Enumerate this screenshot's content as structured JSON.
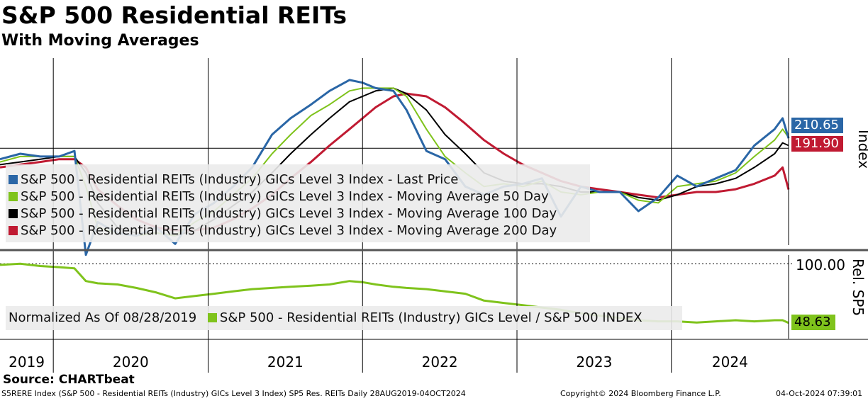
{
  "title": "S&P 500 Residential REITs",
  "subtitle": "With Moving Averages",
  "source": "Source: CHARTbeat",
  "footer": {
    "left": "S5RERE Index (S&P 500 - Residential REITs (Industry) GICs Level 3 Index) SP5 Res. REITs  Daily 28AUG2019-04OCT2024",
    "middle": "Copyright© 2024 Bloomberg Finance L.P.",
    "right": "04-Oct-2024 07:39:01"
  },
  "colors": {
    "price": "#2a66a6",
    "ma50": "#7fc31c",
    "ma100": "#000000",
    "ma200": "#c01a32",
    "relative": "#7fc31c"
  },
  "chart_data": [
    {
      "type": "line",
      "panel": "upper",
      "ylabel": "Index",
      "legend": [
        "S&P 500 - Residential REITs (Industry) GICs Level 3 Index - Last Price",
        "S&P 500 - Residential REITs (Industry) GICs Level 3 Index - Moving Average 50 Day",
        "S&P 500 - Residential REITs (Industry) GICs Level 3 Index - Moving Average 100 Day",
        "S&P 500 - Residential REITs (Industry) GICs Level 3 Index - Moving Average 200 Day"
      ],
      "x_tick_labels": [
        "2019",
        "2020",
        "2021",
        "2022",
        "2023",
        "2024"
      ],
      "last_values": {
        "price": "210.65",
        "ma200": "191.90"
      },
      "x": [
        "2019-08-28",
        "2019-10-15",
        "2019-12-01",
        "2020-01-15",
        "2020-02-20",
        "2020-03-18",
        "2020-04-15",
        "2020-06-01",
        "2020-07-15",
        "2020-09-01",
        "2020-10-15",
        "2020-12-01",
        "2021-01-15",
        "2021-03-01",
        "2021-04-15",
        "2021-06-01",
        "2021-07-15",
        "2021-09-01",
        "2021-10-15",
        "2021-12-01",
        "2022-01-01",
        "2022-02-01",
        "2022-03-15",
        "2022-04-15",
        "2022-06-01",
        "2022-07-15",
        "2022-09-01",
        "2022-10-15",
        "2022-12-01",
        "2023-01-15",
        "2023-03-01",
        "2023-04-15",
        "2023-06-01",
        "2023-07-15",
        "2023-09-01",
        "2023-10-15",
        "2023-12-01",
        "2024-01-15",
        "2024-03-01",
        "2024-04-15",
        "2024-06-01",
        "2024-07-15",
        "2024-09-01",
        "2024-09-20",
        "2024-10-04"
      ],
      "series": [
        {
          "key": "price",
          "values": [
            203,
            205,
            204,
            204,
            206,
            168,
            180,
            176,
            175,
            178,
            172,
            183,
            187,
            193,
            200,
            212,
            218,
            223,
            228,
            232,
            231,
            229,
            228,
            221,
            206,
            203,
            193,
            190,
            193,
            194,
            196,
            182,
            193,
            191,
            191,
            184,
            189,
            197,
            193,
            196,
            199,
            208,
            214,
            218,
            210.65
          ]
        },
        {
          "key": "ma50",
          "values": [
            202,
            204,
            204,
            204,
            204,
            193,
            178,
            176,
            175,
            176,
            175,
            180,
            184,
            190,
            196,
            205,
            212,
            219,
            223,
            228,
            229,
            229,
            229,
            226,
            214,
            204,
            198,
            193,
            194,
            193,
            195,
            191,
            190,
            191,
            191,
            188,
            187,
            193,
            194,
            195,
            198,
            204,
            210,
            214,
            211
          ]
        },
        {
          "key": "ma100",
          "values": [
            201,
            202,
            203,
            204,
            204,
            198,
            187,
            178,
            176,
            176,
            175,
            177,
            181,
            186,
            191,
            198,
            205,
            212,
            218,
            224,
            226,
            228,
            229,
            227,
            221,
            212,
            205,
            198,
            195,
            194,
            194,
            193,
            191,
            191,
            191,
            189,
            188,
            190,
            193,
            194,
            196,
            200,
            205,
            209,
            208
          ]
        },
        {
          "key": "ma200",
          "values": [
            200,
            201,
            202,
            203,
            203,
            200,
            192,
            186,
            181,
            178,
            177,
            177,
            178,
            181,
            185,
            190,
            196,
            202,
            208,
            214,
            218,
            222,
            226,
            227,
            226,
            222,
            216,
            210,
            205,
            201,
            198,
            195,
            193,
            192,
            191,
            190,
            189,
            190,
            191,
            191,
            192,
            194,
            197,
            200,
            191.9
          ]
        }
      ]
    },
    {
      "type": "line",
      "panel": "lower",
      "ylabel": "Rel. SP5",
      "legend_note": "Normalized As Of 08/28/2019",
      "legend": [
        "S&P 500 - Residential REITs (Industry) GICs Level / S&P 500 INDEX"
      ],
      "tick_label": "100.00",
      "last_value": "48.63",
      "x": [
        "2019-08-28",
        "2019-10-15",
        "2019-12-01",
        "2020-01-15",
        "2020-02-20",
        "2020-03-18",
        "2020-04-15",
        "2020-06-01",
        "2020-07-15",
        "2020-09-01",
        "2020-10-15",
        "2020-12-01",
        "2021-01-15",
        "2021-03-01",
        "2021-04-15",
        "2021-06-01",
        "2021-07-15",
        "2021-09-01",
        "2021-10-15",
        "2021-12-01",
        "2022-01-01",
        "2022-02-01",
        "2022-03-15",
        "2022-04-15",
        "2022-06-01",
        "2022-07-15",
        "2022-09-01",
        "2022-10-15",
        "2022-12-01",
        "2023-01-15",
        "2023-03-01",
        "2023-04-15",
        "2023-06-01",
        "2023-07-15",
        "2023-09-01",
        "2023-10-15",
        "2023-12-01",
        "2024-01-15",
        "2024-03-01",
        "2024-04-15",
        "2024-06-01",
        "2024-07-15",
        "2024-09-01",
        "2024-09-20",
        "2024-10-04"
      ],
      "values": [
        99,
        100,
        98,
        97,
        96,
        85,
        83,
        82,
        79,
        75,
        70,
        72,
        74,
        76,
        78,
        79,
        80,
        81,
        82,
        85,
        84,
        82,
        80,
        79,
        78,
        76,
        74,
        68,
        66,
        64,
        62,
        60,
        57,
        55,
        53,
        51,
        50,
        50,
        49,
        50,
        51,
        50,
        51,
        51,
        48.63
      ]
    }
  ]
}
